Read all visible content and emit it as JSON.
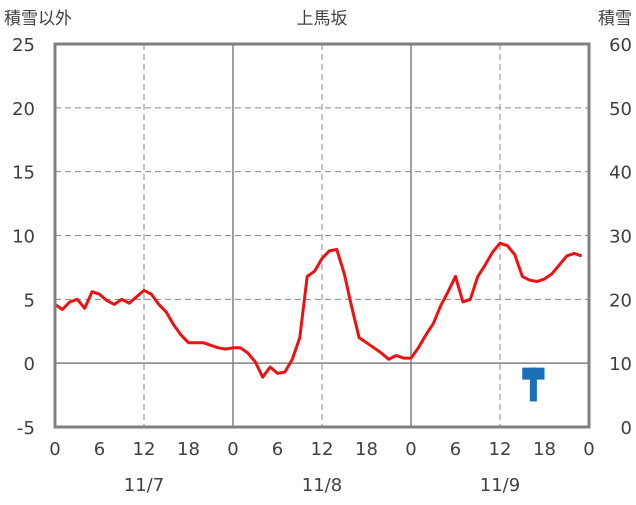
{
  "chart_data": {
    "type": "line",
    "title": "上馬坂",
    "left_axis_label": "積雪以外",
    "right_axis_label": "積雪",
    "left_ylim": [
      -5,
      25
    ],
    "left_ticks": [
      "25",
      "20",
      "15",
      "10",
      "5",
      "0",
      "-5"
    ],
    "right_ylim": [
      0,
      60
    ],
    "right_ticks": [
      "60",
      "50",
      "40",
      "30",
      "20",
      "10",
      "0"
    ],
    "x_range_hours": [
      0,
      72
    ],
    "x_tick_labels": [
      "0",
      "6",
      "12",
      "18",
      "0",
      "6",
      "12",
      "18",
      "0",
      "6",
      "12",
      "18",
      "0"
    ],
    "dates": [
      "11/7",
      "11/8",
      "11/9"
    ],
    "grid": true,
    "colors": {
      "temperature": "#ee1111",
      "snow": "#1a6fb6",
      "baseline": "#7030a0",
      "frame": "#808080"
    },
    "series": [
      {
        "axis": "left",
        "values": [
          [
            0,
            4.6
          ],
          [
            1,
            4.2
          ],
          [
            2,
            4.8
          ],
          [
            3,
            5.0
          ],
          [
            4,
            4.3
          ],
          [
            5,
            5.6
          ],
          [
            6,
            5.4
          ],
          [
            7,
            4.9
          ],
          [
            8,
            4.6
          ],
          [
            9,
            5.0
          ],
          [
            10,
            4.7
          ],
          [
            11,
            5.2
          ],
          [
            12,
            5.7
          ],
          [
            13,
            5.4
          ],
          [
            14,
            4.6
          ],
          [
            15,
            4.0
          ],
          [
            16,
            3.0
          ],
          [
            17,
            2.2
          ],
          [
            18,
            1.6
          ],
          [
            19,
            1.6
          ],
          [
            20,
            1.6
          ],
          [
            21,
            1.4
          ],
          [
            22,
            1.2
          ],
          [
            23,
            1.1
          ],
          [
            24,
            1.2
          ],
          [
            25,
            1.2
          ],
          [
            26,
            0.8
          ],
          [
            27,
            0.1
          ],
          [
            28,
            -1.1
          ],
          [
            29,
            -0.3
          ],
          [
            30,
            -0.8
          ],
          [
            31,
            -0.7
          ],
          [
            32,
            0.3
          ],
          [
            33,
            2.0
          ],
          [
            34,
            6.8
          ],
          [
            35,
            7.2
          ],
          [
            36,
            8.2
          ],
          [
            37,
            8.8
          ],
          [
            38,
            8.9
          ],
          [
            39,
            7.0
          ],
          [
            40,
            4.4
          ],
          [
            41,
            2.0
          ],
          [
            42,
            1.6
          ],
          [
            43,
            1.2
          ],
          [
            44,
            0.8
          ],
          [
            45,
            0.3
          ],
          [
            46,
            0.6
          ],
          [
            47,
            0.4
          ],
          [
            48,
            0.4
          ],
          [
            49,
            1.2
          ],
          [
            50,
            2.2
          ],
          [
            51,
            3.1
          ],
          [
            52,
            4.5
          ],
          [
            53,
            5.6
          ],
          [
            54,
            6.8
          ],
          [
            55,
            4.8
          ],
          [
            56,
            5.0
          ],
          [
            57,
            6.8
          ],
          [
            58,
            7.7
          ],
          [
            59,
            8.7
          ],
          [
            60,
            9.4
          ],
          [
            61,
            9.2
          ],
          [
            62,
            8.5
          ],
          [
            63,
            6.8
          ],
          [
            64,
            6.5
          ],
          [
            65,
            6.4
          ],
          [
            66,
            6.6
          ],
          [
            67,
            7.0
          ],
          [
            68,
            7.7
          ],
          [
            69,
            8.4
          ],
          [
            70,
            8.6
          ],
          [
            71,
            8.4
          ]
        ]
      },
      {
        "axis": "right",
        "values": [
          [
            63,
            9.3
          ],
          [
            64,
            9.3
          ],
          [
            65,
            9.3
          ],
          [
            66,
            9.3
          ]
        ],
        "stem": {
          "x": 64.5,
          "from": 9.3,
          "to": 4.0
        }
      },
      {
        "axis": "left",
        "values": [
          [
            0,
            -5
          ],
          [
            72,
            -5
          ]
        ]
      }
    ]
  }
}
